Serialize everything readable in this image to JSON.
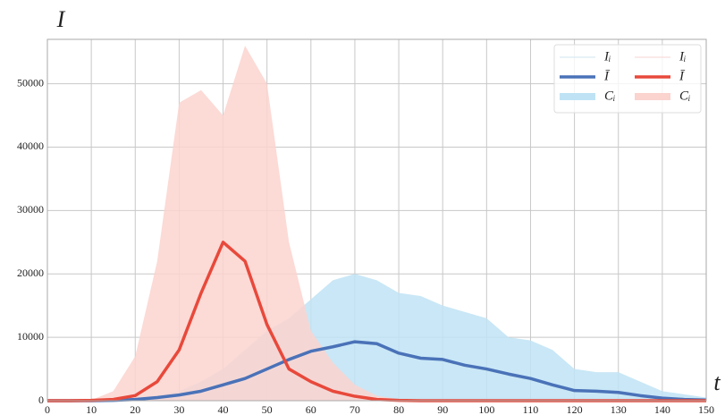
{
  "chart_data": {
    "type": "line",
    "x_label": "t",
    "y_label": "I",
    "x": [
      0,
      5,
      10,
      15,
      20,
      25,
      30,
      35,
      40,
      45,
      50,
      55,
      60,
      65,
      70,
      75,
      80,
      85,
      90,
      95,
      100,
      105,
      110,
      115,
      120,
      125,
      130,
      135,
      140,
      145,
      150
    ],
    "series": [
      {
        "kind": "area",
        "color": "#bfe3f5",
        "values": [
          0,
          0,
          0,
          0,
          200,
          800,
          1500,
          3000,
          5000,
          8000,
          11000,
          13000,
          16000,
          19000,
          20000,
          19000,
          17000,
          16500,
          15000,
          14000,
          13000,
          10000,
          9500,
          8000,
          5000,
          4500,
          4500,
          3000,
          1500,
          1000,
          500
        ]
      },
      {
        "kind": "area",
        "color": "#fbd3cf",
        "values": [
          0,
          0,
          100,
          1500,
          7000,
          22000,
          47000,
          49000,
          45000,
          56000,
          50000,
          25000,
          11000,
          6000,
          2500,
          800,
          200,
          0,
          0,
          0,
          0,
          0,
          0,
          0,
          0,
          0,
          0,
          0,
          0,
          0,
          0
        ]
      },
      {
        "kind": "line",
        "color": "#4a72b8",
        "values": [
          0,
          0,
          0,
          50,
          200,
          500,
          900,
          1500,
          2500,
          3500,
          5000,
          6500,
          7800,
          8500,
          9300,
          9000,
          7500,
          6700,
          6500,
          5600,
          5000,
          4200,
          3500,
          2500,
          1600,
          1500,
          1300,
          800,
          400,
          200,
          100
        ]
      },
      {
        "kind": "line",
        "color": "#e8493b",
        "values": [
          0,
          0,
          50,
          200,
          800,
          3000,
          8000,
          17000,
          25000,
          22000,
          12000,
          5000,
          3000,
          1500,
          700,
          200,
          50,
          0,
          0,
          0,
          0,
          0,
          0,
          0,
          0,
          0,
          0,
          0,
          0,
          0,
          0
        ]
      }
    ],
    "legend": [
      {
        "name": "Iᵢ",
        "color": "#cfe6f2",
        "kind": "thin"
      },
      {
        "name": "Ī",
        "color": "#4a72b8",
        "kind": "line"
      },
      {
        "name": "Cᵢ",
        "color": "#bfe3f5",
        "kind": "band"
      },
      {
        "name": "Iᵢ",
        "color": "#f6d6d3",
        "kind": "thin"
      },
      {
        "name": "Ī",
        "color": "#e8493b",
        "kind": "line"
      },
      {
        "name": "Cᵢ",
        "color": "#fbd3cf",
        "kind": "band"
      }
    ],
    "legend_position": "upper right",
    "grid": true,
    "xlim": [
      0,
      150
    ],
    "ylim": [
      0,
      57000
    ],
    "xticks": [
      0,
      10,
      20,
      30,
      40,
      50,
      60,
      70,
      80,
      90,
      100,
      110,
      120,
      130,
      140,
      150
    ],
    "yticks": [
      0,
      10000,
      20000,
      30000,
      40000,
      50000
    ]
  }
}
